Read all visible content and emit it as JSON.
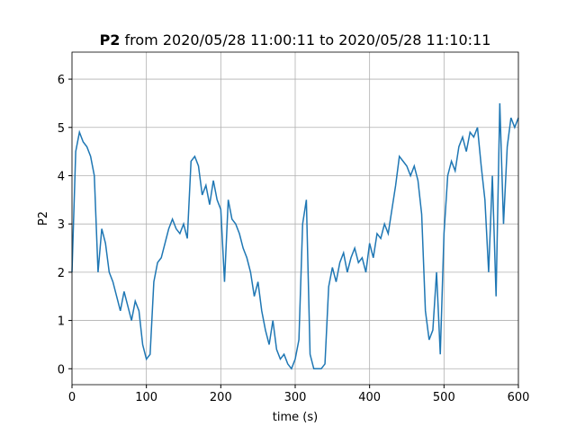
{
  "chart_data": {
    "type": "line",
    "title_prefix": "P2",
    "title": "from 2020/05/28 11:00:11 to 2020/05/28 11:10:11",
    "xlabel": "time (s)",
    "ylabel": "P2",
    "x": [
      0,
      5,
      10,
      15,
      20,
      25,
      30,
      35,
      40,
      45,
      50,
      55,
      60,
      65,
      70,
      75,
      80,
      85,
      90,
      95,
      100,
      105,
      110,
      115,
      120,
      125,
      130,
      135,
      140,
      145,
      150,
      155,
      160,
      165,
      170,
      175,
      180,
      185,
      190,
      195,
      200,
      205,
      210,
      215,
      220,
      225,
      230,
      235,
      240,
      245,
      250,
      255,
      260,
      265,
      270,
      275,
      280,
      285,
      290,
      295,
      300,
      305,
      310,
      315,
      320,
      325,
      330,
      335,
      340,
      345,
      350,
      355,
      360,
      365,
      370,
      375,
      380,
      385,
      390,
      395,
      400,
      405,
      410,
      415,
      420,
      425,
      430,
      435,
      440,
      445,
      450,
      455,
      460,
      465,
      470,
      475,
      480,
      485,
      490,
      495,
      500,
      505,
      510,
      515,
      520,
      525,
      530,
      535,
      540,
      545,
      550,
      555,
      560,
      565,
      570,
      575,
      580,
      585,
      590,
      595,
      600
    ],
    "series": [
      {
        "name": "P2",
        "color": "#1f77b4",
        "values": [
          2.0,
          4.5,
          4.9,
          4.7,
          4.6,
          4.4,
          4.0,
          2.0,
          2.9,
          2.6,
          2.0,
          1.8,
          1.5,
          1.2,
          1.6,
          1.3,
          1.0,
          1.4,
          1.2,
          0.5,
          0.2,
          0.3,
          1.8,
          2.2,
          2.3,
          2.6,
          2.9,
          3.1,
          2.9,
          2.8,
          3.0,
          2.7,
          4.3,
          4.4,
          4.2,
          3.6,
          3.8,
          3.4,
          3.9,
          3.5,
          3.3,
          1.8,
          3.5,
          3.1,
          3.0,
          2.8,
          2.5,
          2.3,
          2.0,
          1.5,
          1.8,
          1.2,
          0.8,
          0.5,
          1.0,
          0.4,
          0.2,
          0.3,
          0.1,
          0.0,
          0.2,
          0.6,
          3.0,
          3.5,
          0.3,
          0.0,
          0.0,
          0.0,
          0.1,
          1.7,
          2.1,
          1.8,
          2.2,
          2.4,
          2.0,
          2.3,
          2.5,
          2.2,
          2.3,
          2.0,
          2.6,
          2.3,
          2.8,
          2.7,
          3.0,
          2.8,
          3.3,
          3.8,
          4.4,
          4.3,
          4.2,
          4.0,
          4.2,
          3.9,
          3.2,
          1.2,
          0.6,
          0.8,
          2.0,
          0.3,
          2.8,
          4.0,
          4.3,
          4.1,
          4.6,
          4.8,
          4.5,
          4.9,
          4.8,
          5.0,
          4.2,
          3.5,
          2.0,
          4.0,
          1.5,
          5.5,
          3.0,
          4.6,
          5.2,
          5.0,
          5.2
        ]
      }
    ],
    "xlim": [
      0,
      600
    ],
    "ylim": [
      -0.33,
      6.56
    ],
    "xticks": [
      0,
      100,
      200,
      300,
      400,
      500,
      600
    ],
    "yticks": [
      0,
      1,
      2,
      3,
      4,
      5,
      6
    ],
    "grid": true
  }
}
